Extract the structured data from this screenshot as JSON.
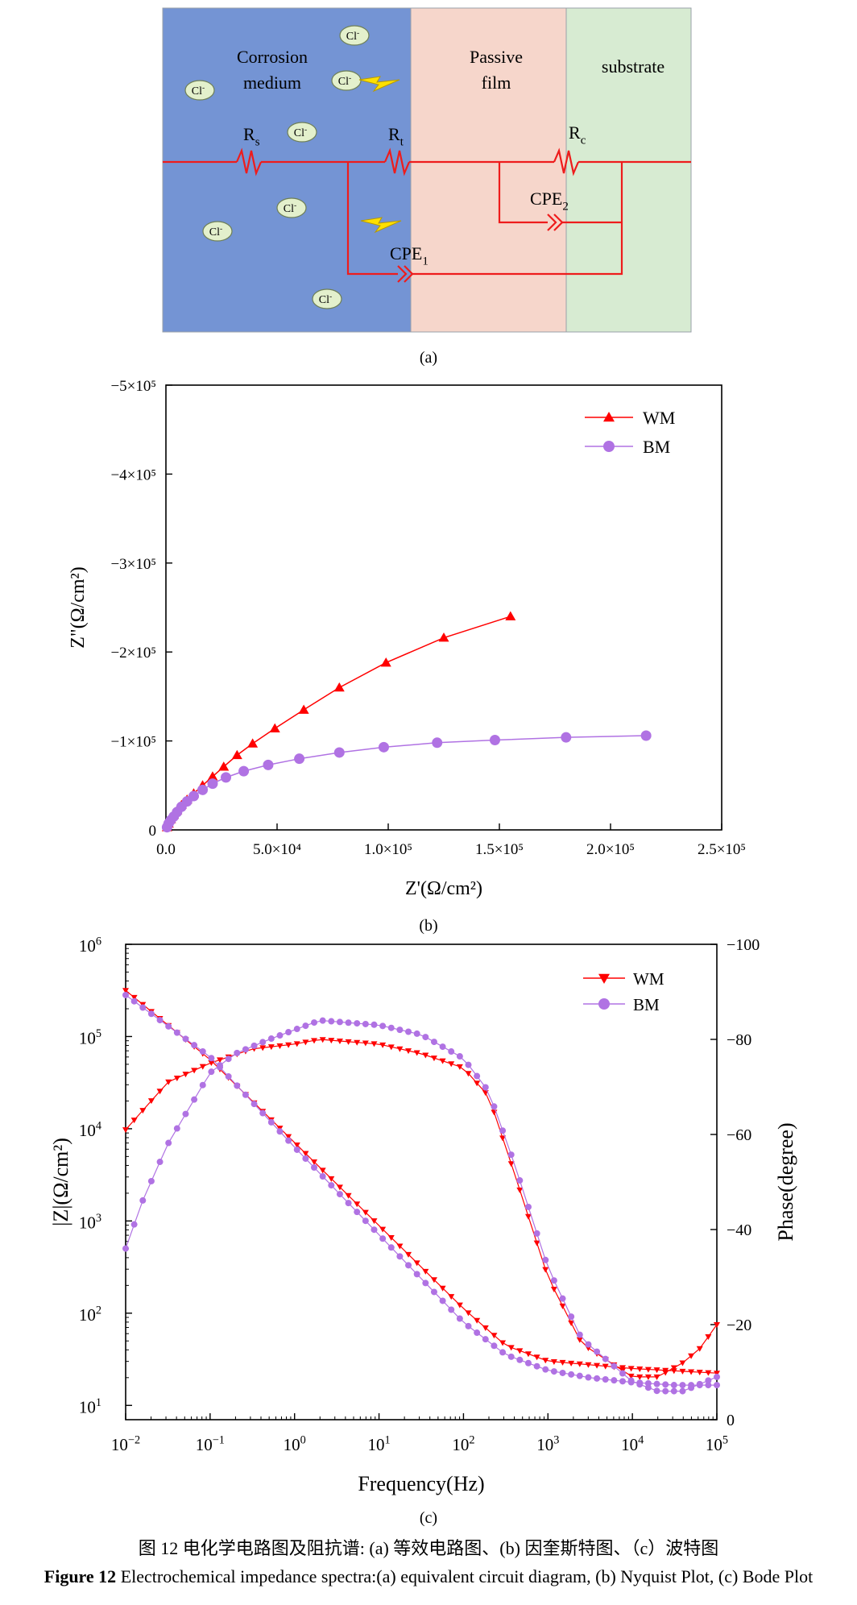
{
  "figure": {
    "caption_cn": "图 12  电化学电路图及阻抗谱: (a) 等效电路图、(b) 因奎斯特图、（c）波特图",
    "caption_en_label": "Figure 12",
    "caption_en_text": " Electrochemical impedance spectra:(a) equivalent circuit diagram, (b) Nyquist Plot, (c) Bode Plot"
  },
  "panel_a": {
    "label": "(a)",
    "regions": [
      {
        "name": "Corrosion medium",
        "lines": [
          "Corrosion",
          "medium"
        ],
        "color": "#7494d4"
      },
      {
        "name": "Passive film",
        "lines": [
          "Passive",
          "film"
        ],
        "color": "#f6d6cb"
      },
      {
        "name": "substrate",
        "lines": [
          "substrate"
        ],
        "color": "#d7ebd2"
      }
    ],
    "ion_label": "Cl",
    "ion_sup": "-",
    "components": [
      {
        "main": "R",
        "sub": "s"
      },
      {
        "main": "R",
        "sub": "t"
      },
      {
        "main": "R",
        "sub": "c"
      },
      {
        "main": "CPE",
        "sub": "1"
      },
      {
        "main": "CPE",
        "sub": "2"
      }
    ],
    "wire_color": "#ee1c1c",
    "ion_fill": "#e3f0cc"
  },
  "chart_data": [
    {
      "panel": "(b)",
      "type": "scatter",
      "xlabel": "Z'(Ω/cm²)",
      "ylabel": "Z\"(Ω/cm²)",
      "xlim": [
        0,
        250000
      ],
      "ylim": [
        0,
        -500000
      ],
      "x_ticks": [
        {
          "v": 0,
          "label": "0.0"
        },
        {
          "v": 50000,
          "label": "5.0×10⁴"
        },
        {
          "v": 100000,
          "label": "1.0×10⁵"
        },
        {
          "v": 150000,
          "label": "1.5×10⁵"
        },
        {
          "v": 200000,
          "label": "2.0×10⁵"
        },
        {
          "v": 250000,
          "label": "2.5×10⁵"
        }
      ],
      "y_ticks": [
        {
          "v": 0,
          "label": "0"
        },
        {
          "v": -100000,
          "label": "−1×10⁵"
        },
        {
          "v": -200000,
          "label": "−2×10⁵"
        },
        {
          "v": -300000,
          "label": "−3×10⁵"
        },
        {
          "v": -400000,
          "label": "−4×10⁵"
        },
        {
          "v": -500000,
          "label": "−5×10⁵"
        }
      ],
      "legend_position": "top-right",
      "series": [
        {
          "name": "WM",
          "color": "#ff0000",
          "marker": "triangle-up",
          "x": [
            500,
            1200,
            2200,
            3500,
            5000,
            7000,
            9500,
            12500,
            16500,
            21000,
            26000,
            32000,
            39000,
            49000,
            62000,
            78000,
            99000,
            125000,
            155000
          ],
          "y": [
            -3000,
            -7000,
            -12000,
            -17000,
            -22000,
            -28000,
            -34000,
            -41000,
            -50000,
            -60000,
            -71000,
            -84000,
            -97000,
            -114000,
            -135000,
            -160000,
            -188000,
            -216000,
            -240000
          ]
        },
        {
          "name": "BM",
          "color": "#b072e3",
          "marker": "circle",
          "x": [
            500,
            1200,
            2200,
            3500,
            5000,
            7000,
            9500,
            12500,
            16500,
            21000,
            27000,
            35000,
            46000,
            60000,
            78000,
            98000,
            122000,
            148000,
            180000,
            216000
          ],
          "y": [
            -3000,
            -7000,
            -11000,
            -15000,
            -20000,
            -26000,
            -32000,
            -38000,
            -45000,
            -52000,
            -59000,
            -66000,
            -73000,
            -80000,
            -87000,
            -93000,
            -98000,
            -101000,
            -104000,
            -106000
          ]
        }
      ]
    },
    {
      "panel": "(c)",
      "type": "line",
      "xlabel": "Frequency(Hz)",
      "ylabel": "|Z|(Ω/cm²)",
      "y2label": "Phase(degree)",
      "x_scale": "log",
      "y_scale": "log",
      "xlim": [
        0.01,
        100000
      ],
      "ylim": [
        7,
        1000000
      ],
      "y2lim": [
        0,
        -100
      ],
      "x_ticks": [
        {
          "v": 0.01,
          "base": "10",
          "exp": "−2"
        },
        {
          "v": 0.1,
          "base": "10",
          "exp": "−1"
        },
        {
          "v": 1,
          "base": "10",
          "exp": "0"
        },
        {
          "v": 10,
          "base": "10",
          "exp": "1"
        },
        {
          "v": 100,
          "base": "10",
          "exp": "2"
        },
        {
          "v": 1000,
          "base": "10",
          "exp": "3"
        },
        {
          "v": 10000,
          "base": "10",
          "exp": "4"
        },
        {
          "v": 100000,
          "base": "10",
          "exp": "5"
        }
      ],
      "y_ticks": [
        {
          "v": 10,
          "base": "10",
          "exp": "1"
        },
        {
          "v": 100,
          "base": "10",
          "exp": "2"
        },
        {
          "v": 1000,
          "base": "10",
          "exp": "3"
        },
        {
          "v": 10000,
          "base": "10",
          "exp": "4"
        },
        {
          "v": 100000,
          "base": "10",
          "exp": "5"
        },
        {
          "v": 1000000,
          "base": "10",
          "exp": "6"
        }
      ],
      "y2_ticks": [
        {
          "v": 0,
          "label": "0"
        },
        {
          "v": -20,
          "label": "−20"
        },
        {
          "v": -40,
          "label": "−40"
        },
        {
          "v": -60,
          "label": "−60"
        },
        {
          "v": -80,
          "label": "−80"
        },
        {
          "v": -100,
          "label": "−100"
        }
      ],
      "legend_position": "top-right",
      "series": [
        {
          "name": "WM",
          "color": "#ff0000",
          "marker": "triangle-down",
          "modulus": {
            "logf": [
              -2,
              -1,
              0,
              1,
              2,
              2.5,
              3,
              4,
              5
            ],
            "logz": [
              5.5,
              4.75,
              3.85,
              2.95,
              2.05,
              1.65,
              1.48,
              1.4,
              1.35
            ]
          },
          "phase": {
            "logf": [
              -2,
              -1.5,
              -1,
              -0.5,
              0,
              0.3,
              1,
              1.5,
              2,
              2.3,
              2.6,
              3,
              3.4,
              4,
              4.3,
              4.6,
              4.8,
              5
            ],
            "deg": [
              -61,
              -71,
              -75,
              -78,
              -79,
              -80,
              -79,
              -77,
              -74,
              -68,
              -52,
              -30,
              -16,
              -9,
              -9,
              -12,
              -15,
              -20
            ]
          }
        },
        {
          "name": "BM",
          "color": "#b072e3",
          "marker": "circle",
          "modulus": {
            "logf": [
              -2,
              -1,
              0,
              1,
              2,
              2.5,
              3,
              3.5,
              4,
              4.5,
              5
            ],
            "logz": [
              5.45,
              4.78,
              3.8,
              2.85,
              1.9,
              1.55,
              1.38,
              1.3,
              1.25,
              1.22,
              1.22
            ]
          },
          "phase": {
            "logf": [
              -2,
              -1.8,
              -1.5,
              -1,
              -0.7,
              -0.3,
              0,
              0.3,
              1,
              1.5,
              2,
              2.3,
              2.6,
              3,
              3.4,
              4,
              4.3,
              4.6,
              5
            ],
            "deg": [
              -36,
              -46,
              -58,
              -73,
              -77,
              -80,
              -82,
              -84,
              -83,
              -81,
              -76,
              -69,
              -54,
              -32,
              -17,
              -8,
              -6,
              -6,
              -9
            ]
          }
        }
      ]
    }
  ]
}
